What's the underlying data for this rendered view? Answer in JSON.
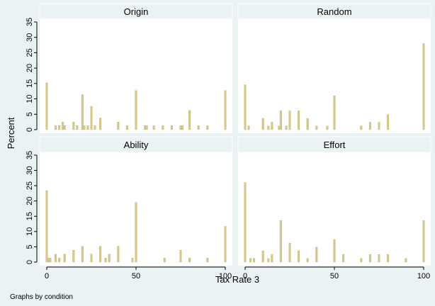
{
  "chart_data": {
    "type": "bar",
    "xlabel": "Tax Rate 3",
    "ylabel": "Percent",
    "note": "Graphs by condition",
    "xlim": [
      0,
      100
    ],
    "ylim": [
      0,
      35
    ],
    "xticks": [
      0,
      50,
      100
    ],
    "yticks": [
      0,
      5,
      10,
      15,
      20,
      25,
      30,
      35
    ],
    "grid": false,
    "colors": {
      "bar": "#d6c98a",
      "bar_edge": "#c2b272",
      "background": "#eaf2f3",
      "panel": "#ffffff",
      "strip": "#eaf2f3"
    },
    "panels": [
      {
        "name": "Origin",
        "x": [
          0,
          5,
          7,
          9,
          10,
          15,
          17,
          20,
          21,
          23,
          25,
          27,
          30,
          40,
          45,
          50,
          55,
          56,
          60,
          65,
          70,
          75,
          76,
          80,
          85,
          90,
          100
        ],
        "values": [
          15.2,
          1.3,
          1.3,
          2.5,
          1.3,
          2.5,
          1.3,
          11.4,
          1.3,
          1.3,
          7.6,
          1.3,
          3.8,
          2.5,
          1.3,
          12.7,
          1.3,
          1.3,
          1.3,
          1.3,
          1.3,
          1.3,
          1.3,
          6.3,
          1.3,
          1.3,
          12.7
        ]
      },
      {
        "name": "Random",
        "x": [
          0,
          2,
          10,
          13,
          15,
          19,
          20,
          23,
          25,
          30,
          35,
          40,
          46,
          50,
          65,
          70,
          75,
          80,
          100
        ],
        "values": [
          14.6,
          1.2,
          3.7,
          1.2,
          2.4,
          1.2,
          6.1,
          1.2,
          6.1,
          6.1,
          3.7,
          1.2,
          1.2,
          11.0,
          1.2,
          2.4,
          2.4,
          4.9,
          28.0
        ]
      },
      {
        "name": "Ability",
        "x": [
          0,
          1,
          2,
          5,
          7,
          10,
          15,
          20,
          25,
          30,
          33,
          35,
          40,
          48,
          50,
          66,
          75,
          80,
          90,
          100
        ],
        "values": [
          23.4,
          1.3,
          1.3,
          2.6,
          1.3,
          2.6,
          3.9,
          5.2,
          2.6,
          5.2,
          1.3,
          2.6,
          5.2,
          1.3,
          19.5,
          1.3,
          3.9,
          1.3,
          1.3,
          11.7
        ]
      },
      {
        "name": "Effort",
        "x": [
          0,
          3,
          5,
          10,
          13,
          15,
          20,
          25,
          30,
          35,
          40,
          50,
          55,
          65,
          70,
          75,
          80,
          90,
          100
        ],
        "values": [
          26.0,
          1.2,
          1.2,
          3.7,
          1.2,
          2.5,
          13.6,
          6.2,
          3.7,
          1.2,
          4.9,
          7.4,
          2.5,
          1.2,
          2.5,
          2.5,
          2.5,
          1.2,
          13.6
        ]
      }
    ]
  }
}
